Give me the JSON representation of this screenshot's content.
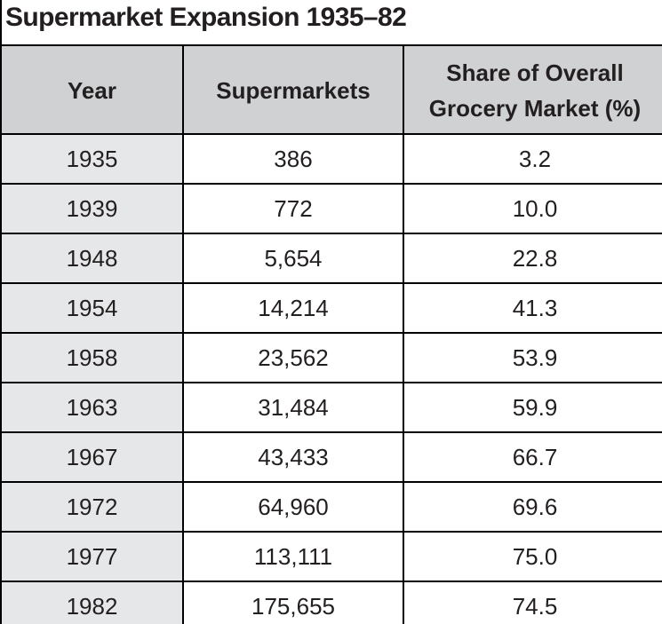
{
  "title": "Supermarket Expansion 1935–82",
  "table": {
    "headers": {
      "year": "Year",
      "supermarkets": "Supermarkets",
      "share_line1": "Share of Overall",
      "share_line2": "Grocery Market (%)"
    },
    "rows": [
      {
        "year": "1935",
        "supermarkets": "386",
        "share": "3.2"
      },
      {
        "year": "1939",
        "supermarkets": "772",
        "share": "10.0"
      },
      {
        "year": "1948",
        "supermarkets": "5,654",
        "share": "22.8"
      },
      {
        "year": "1954",
        "supermarkets": "14,214",
        "share": "41.3"
      },
      {
        "year": "1958",
        "supermarkets": "23,562",
        "share": "53.9"
      },
      {
        "year": "1963",
        "supermarkets": "31,484",
        "share": "59.9"
      },
      {
        "year": "1967",
        "supermarkets": "43,433",
        "share": "66.7"
      },
      {
        "year": "1972",
        "supermarkets": "64,960",
        "share": "69.6"
      },
      {
        "year": "1977",
        "supermarkets": "113,111",
        "share": "75.0"
      },
      {
        "year": "1982",
        "supermarkets": "175,655",
        "share": "74.5"
      }
    ]
  },
  "colors": {
    "header_background": "#d0d1d3",
    "year_column_background": "#e6e7e8",
    "border": "#000000",
    "text": "#231f20"
  }
}
